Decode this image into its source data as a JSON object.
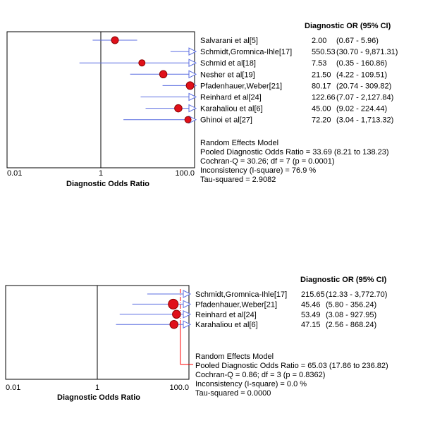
{
  "chart_data": [
    {
      "type": "forest",
      "header": "Diagnostic OR (95% CI)",
      "xlabel": "Diagnostic Odds Ratio",
      "xscale": "log",
      "xlim": [
        0.01,
        100
      ],
      "xticks": [
        "0.01",
        "1",
        "100.0"
      ],
      "null_line": 1,
      "studies": [
        {
          "name": "Salvarani et al[5]",
          "or": 2.0,
          "lo": 0.67,
          "hi": 5.96,
          "or_text": "2.00",
          "ci_text": "(0.67 - 5.96)",
          "size": 1.0,
          "clipped": false
        },
        {
          "name": "Schmidt,Gromnica-Ihle[17]",
          "or": 550.53,
          "lo": 30.7,
          "hi": 9871.31,
          "or_text": "550.53",
          "ci_text": "(30.70 - 9,871.31)",
          "size": 0,
          "clipped": true
        },
        {
          "name": "Schmid et al[18]",
          "or": 7.53,
          "lo": 0.35,
          "hi": 160.86,
          "or_text": "7.53",
          "ci_text": "(0.35 - 160.86)",
          "size": 0.9,
          "clipped": false
        },
        {
          "name": "Nesher et al[19]",
          "or": 21.5,
          "lo": 4.22,
          "hi": 109.51,
          "or_text": "21.50",
          "ci_text": "(4.22 - 109.51)",
          "size": 1.05,
          "clipped": false
        },
        {
          "name": "Pfadenhauer,Weber[21]",
          "or": 80.17,
          "lo": 20.74,
          "hi": 309.82,
          "or_text": "80.17",
          "ci_text": "(20.74 - 309.82)",
          "size": 1.1,
          "clipped": false
        },
        {
          "name": "Reinhard et al[24]",
          "or": 122.66,
          "lo": 7.07,
          "hi": 2127.84,
          "or_text": "122.66",
          "ci_text": "(7.07 - 2,127.84)",
          "size": 0,
          "clipped": true
        },
        {
          "name": "Karahaliou et al[6]",
          "or": 45.0,
          "lo": 9.02,
          "hi": 224.44,
          "or_text": "45.00",
          "ci_text": "(9.02 - 224.44)",
          "size": 1.05,
          "clipped": false
        },
        {
          "name": "Ghinoi et al[27]",
          "or": 72.2,
          "lo": 3.04,
          "hi": 1713.32,
          "or_text": "72.20",
          "ci_text": "(3.04 - 1,713.32)",
          "size": 0.9,
          "clipped": false
        }
      ],
      "pooled": {
        "or": 33.69,
        "lo": 8.21,
        "hi": 138.23,
        "show_diamond": false
      },
      "summary": [
        "Random Effects Model",
        "Pooled Diagnostic Odds Ratio = 33.69 (8.21 to 138.23)",
        "Cochran-Q = 30.26; df =  7 (p = 0.0001)",
        "Inconsistency (I-square) = 76.9 %",
        "Tau-squared = 2.9082"
      ]
    },
    {
      "type": "forest",
      "header": "Diagnostic OR (95% CI)",
      "xlabel": "Diagnostic Odds Ratio",
      "xscale": "log",
      "xlim": [
        0.01,
        100
      ],
      "xticks": [
        "0.01",
        "1",
        "100.0"
      ],
      "null_line": 1,
      "studies": [
        {
          "name": "Schmidt,Gromnica-Ihle[17]",
          "or": 215.65,
          "lo": 12.33,
          "hi": 3772.7,
          "or_text": "215.65",
          "ci_text": "(12.33 - 3,772.70)",
          "size": 0,
          "clipped": true
        },
        {
          "name": "Pfadenhauer,Weber[21]",
          "or": 45.46,
          "lo": 5.8,
          "hi": 356.24,
          "or_text": "45.46",
          "ci_text": "(5.80 - 356.24)",
          "size": 1.4,
          "clipped": false
        },
        {
          "name": "Reinhard et al[24]",
          "or": 53.49,
          "lo": 3.08,
          "hi": 927.95,
          "or_text": "53.49",
          "ci_text": "(3.08 - 927.95)",
          "size": 1.15,
          "clipped": false
        },
        {
          "name": "Karahaliou et al[6]",
          "or": 47.15,
          "lo": 2.56,
          "hi": 868.24,
          "or_text": "47.15",
          "ci_text": "(2.56 - 868.24)",
          "size": 1.15,
          "clipped": false
        }
      ],
      "pooled": {
        "or": 65.03,
        "lo": 17.86,
        "hi": 236.82,
        "show_diamond": true
      },
      "summary": [
        "Random Effects Model",
        "Pooled Diagnostic Odds Ratio = 65.03 (17.86 to 236.82)",
        "Cochran-Q = 0.86; df =  3 (p = 0.8362)",
        "Inconsistency (I-square) = 0.0 %",
        "Tau-squared = 0.0000"
      ]
    }
  ]
}
